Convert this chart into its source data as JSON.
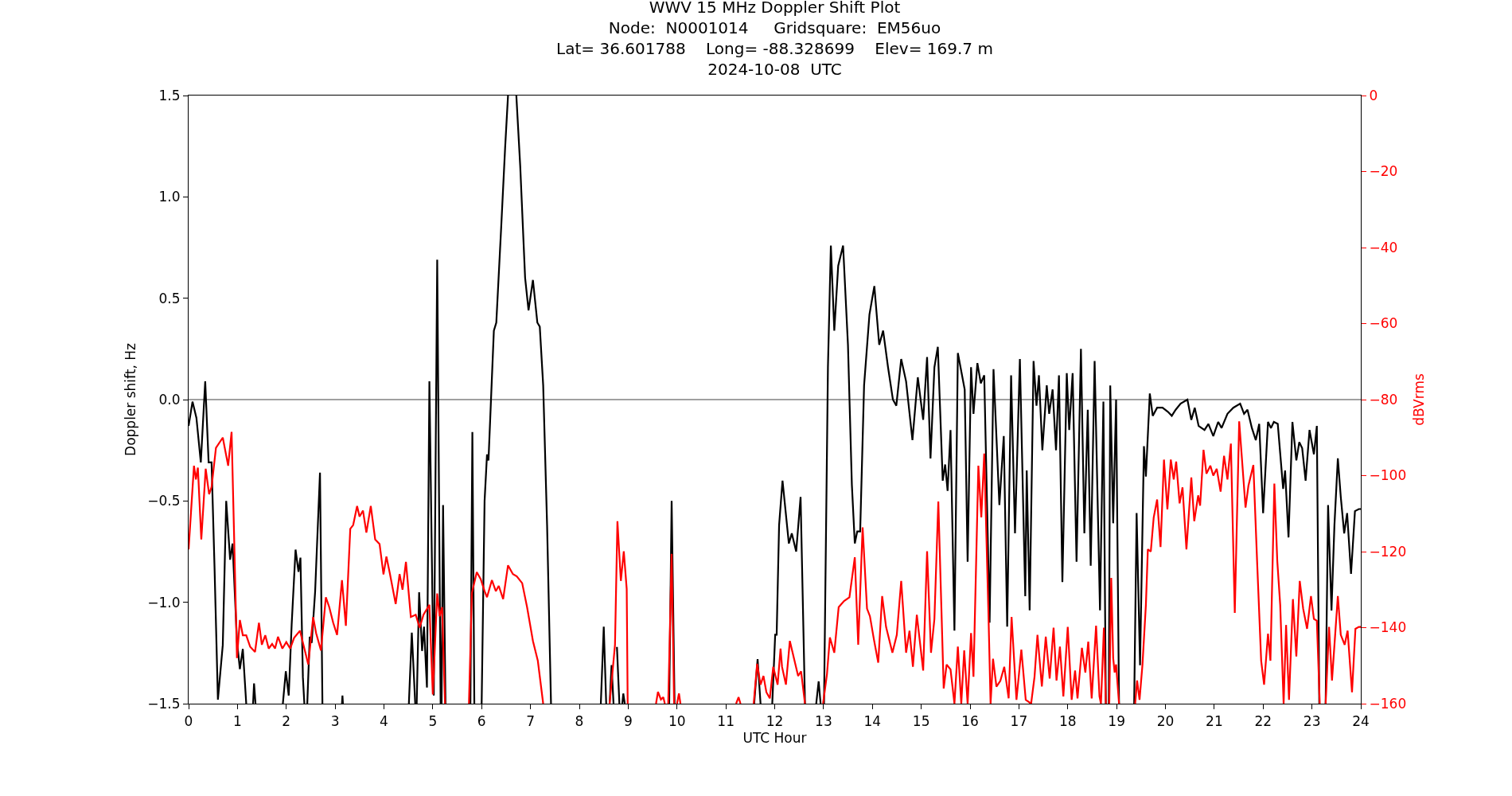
{
  "chart_data": {
    "type": "line",
    "title": "WWV 15 MHz Doppler Shift Plot\nNode:  N0001014     Gridsquare:  EM56uo\nLat= 36.601788    Long= -88.328699    Elev= 169.7 m\n2024-10-08  UTC",
    "xlabel": "UTC Hour",
    "ylabel": "Doppler shift, Hz",
    "y2label": "dBVrms",
    "xlim": [
      0,
      24
    ],
    "xticks": [
      0,
      1,
      2,
      3,
      4,
      5,
      6,
      7,
      8,
      9,
      10,
      11,
      12,
      13,
      14,
      15,
      16,
      17,
      18,
      19,
      20,
      21,
      22,
      23,
      24
    ],
    "ylim": [
      -1.5,
      1.5
    ],
    "yticks": [
      {
        "value": -1.5,
        "label": "−1.5"
      },
      {
        "value": -1.0,
        "label": "−1.0"
      },
      {
        "value": -0.5,
        "label": "−0.5"
      },
      {
        "value": 0,
        "label": "0.0"
      },
      {
        "value": 0.5,
        "label": "0.5"
      },
      {
        "value": 1.0,
        "label": "1.0"
      },
      {
        "value": 1.5,
        "label": "1.5"
      }
    ],
    "y2lim": [
      -160,
      0
    ],
    "y2ticks": [
      {
        "value": -160,
        "label": "−160"
      },
      {
        "value": -140,
        "label": "−140"
      },
      {
        "value": -120,
        "label": "−120"
      },
      {
        "value": -100,
        "label": "−100"
      },
      {
        "value": -80,
        "label": "−80"
      },
      {
        "value": -60,
        "label": "−60"
      },
      {
        "value": -40,
        "label": "−40"
      },
      {
        "value": -20,
        "label": "−20"
      },
      0
    ],
    "grid": false,
    "marker": "none",
    "line_style": "solid",
    "ref_lines": [
      {
        "axis": "y",
        "value": 0,
        "color": "#808080"
      }
    ],
    "series": [
      {
        "color": "#000000",
        "axis": "y",
        "x": [
          0,
          0.08,
          0.16,
          0.25,
          0.34,
          0.41,
          0.47,
          0.53,
          0.6,
          0.7,
          0.77,
          0.85,
          0.9,
          0.99,
          1.05,
          1.11,
          1.18,
          1.2,
          1.32,
          1.34,
          1.37,
          1.5,
          1.93,
          1.99,
          2.05,
          2.11,
          2.19,
          2.25,
          2.29,
          2.34,
          2.37,
          2.4,
          2.43,
          2.48,
          2.52,
          2.59,
          2.69,
          2.74,
          2.9,
          3.14,
          3.15,
          3.16,
          3.3,
          4.51,
          4.57,
          4.64,
          4.66,
          4.67,
          4.72,
          4.78,
          4.82,
          4.88,
          4.93,
          5.02,
          5.09,
          5.16,
          5.18,
          5.21,
          5.26,
          5.5,
          5.77,
          5.81,
          5.85,
          5.9,
          6.0,
          6.06,
          6.11,
          6.14,
          6.25,
          6.3,
          6.4,
          6.48,
          6.54,
          6.6,
          6.71,
          6.79,
          6.89,
          6.96,
          7.05,
          7.14,
          7.19,
          7.26,
          7.34,
          7.42,
          8.0,
          8.44,
          8.5,
          8.55,
          8.6,
          8.62,
          8.66,
          8.7,
          8.73,
          8.77,
          8.82,
          8.85,
          8.88,
          8.9,
          8.93,
          9.5,
          9.84,
          9.89,
          9.95,
          11.0,
          11.58,
          11.65,
          11.71,
          11.8,
          11.95,
          12.01,
          12.04,
          12.09,
          12.16,
          12.29,
          12.35,
          12.44,
          12.53,
          12.62,
          12.75,
          12.85,
          12.9,
          12.94,
          12.98,
          13.01,
          13.09,
          13.15,
          13.22,
          13.3,
          13.4,
          13.5,
          13.58,
          13.64,
          13.69,
          13.75,
          13.83,
          13.94,
          14.04,
          14.14,
          14.22,
          14.32,
          14.42,
          14.49,
          14.59,
          14.69,
          14.82,
          14.93,
          15.04,
          15.12,
          15.19,
          15.27,
          15.34,
          15.44,
          15.49,
          15.54,
          15.6,
          15.68,
          15.75,
          15.89,
          15.95,
          16.02,
          16.07,
          16.15,
          16.22,
          16.29,
          16.4,
          16.48,
          16.6,
          16.69,
          16.76,
          16.84,
          16.92,
          17.02,
          17.13,
          17.16,
          17.22,
          17.3,
          17.36,
          17.41,
          17.48,
          17.57,
          17.62,
          17.69,
          17.76,
          17.82,
          17.89,
          17.98,
          18.03,
          18.1,
          18.18,
          18.27,
          18.34,
          18.41,
          18.47,
          18.55,
          18.66,
          18.73,
          18.78,
          18.82,
          18.84,
          18.87,
          18.93,
          18.99,
          19.05,
          19.2,
          19.36,
          19.41,
          19.48,
          19.56,
          19.6,
          19.68,
          19.74,
          19.83,
          19.94,
          20.05,
          20.13,
          20.21,
          20.31,
          20.45,
          20.53,
          20.6,
          20.68,
          20.8,
          20.88,
          20.98,
          21.08,
          21.15,
          21.27,
          21.39,
          21.53,
          21.61,
          21.68,
          21.77,
          21.85,
          21.92,
          22.0,
          22.1,
          22.16,
          22.22,
          22.3,
          22.41,
          22.45,
          22.52,
          22.6,
          22.68,
          22.74,
          22.8,
          22.87,
          22.95,
          23.04,
          23.1,
          23.15,
          23.2,
          23.28,
          23.33,
          23.4,
          23.46,
          23.53,
          23.59,
          23.66,
          23.72,
          23.8,
          23.88,
          23.96,
          24
        ],
        "values": [
          -0.13,
          -0.01,
          -0.09,
          -0.31,
          0.09,
          -0.31,
          -0.31,
          -0.82,
          -1.48,
          -1.21,
          -0.5,
          -0.79,
          -0.71,
          -1.19,
          -1.33,
          -1.23,
          -1.5,
          null,
          -1.5,
          -1.4,
          -1.5,
          null,
          -1.5,
          -1.34,
          -1.46,
          -1.11,
          -0.74,
          -0.85,
          -0.78,
          -1.37,
          -1.5,
          null,
          -1.5,
          -1.17,
          -1.2,
          -0.95,
          -0.36,
          -1.5,
          null,
          -1.5,
          -1.46,
          -1.5,
          null,
          -1.5,
          -1.15,
          -1.5,
          null,
          -1.5,
          -0.95,
          -1.24,
          -1.12,
          -1.42,
          0.09,
          -1.46,
          0.69,
          -1.5,
          -1.5,
          -0.52,
          -1.5,
          null,
          -1.5,
          -0.16,
          -1.5,
          null,
          -1.5,
          -0.5,
          -0.27,
          -0.3,
          0.34,
          0.38,
          0.85,
          1.24,
          1.5,
          null,
          1.5,
          1.15,
          0.6,
          0.44,
          0.59,
          0.38,
          0.36,
          0.07,
          -0.62,
          -1.5,
          null,
          -1.5,
          -1.12,
          -1.5,
          null,
          -1.5,
          -1.31,
          -1.5,
          null,
          -1.22,
          -1.5,
          null,
          -1.5,
          -1.45,
          -1.5,
          null,
          -1.5,
          -0.5,
          -1.5,
          null,
          -1.5,
          -1.28,
          -1.5,
          null,
          -1.5,
          -1.16,
          -1.16,
          -0.62,
          -0.4,
          -0.71,
          -0.66,
          -0.75,
          -0.48,
          -1.5,
          null,
          -1.5,
          -1.39,
          -1.5,
          null,
          -1.5,
          0.16,
          0.76,
          0.34,
          0.66,
          0.76,
          0.27,
          -0.42,
          -0.71,
          -0.65,
          -0.65,
          0.07,
          0.42,
          0.56,
          0.27,
          0.34,
          0.16,
          0.0,
          -0.03,
          0.2,
          0.09,
          -0.2,
          0.11,
          -0.1,
          0.21,
          -0.29,
          0.16,
          0.26,
          -0.4,
          -0.32,
          -0.45,
          -0.15,
          -1.14,
          0.23,
          0.05,
          -0.8,
          0.16,
          -0.07,
          0.18,
          0.08,
          0.12,
          -1.1,
          0.15,
          -0.52,
          -0.18,
          -1.12,
          0.12,
          -0.66,
          0.2,
          -0.97,
          -0.35,
          -1.04,
          0.19,
          -0.03,
          0.12,
          -0.25,
          0.07,
          -0.07,
          0.05,
          -0.25,
          0.12,
          -0.9,
          0.13,
          -0.15,
          0.13,
          -0.8,
          0.25,
          -0.66,
          -0.05,
          -0.82,
          0.19,
          -1.04,
          -0.01,
          -1.5,
          null,
          -1.5,
          0.07,
          -0.61,
          0.0,
          -1.5,
          null,
          -1.5,
          -0.56,
          -1.31,
          -0.23,
          -0.38,
          0.03,
          -0.08,
          -0.04,
          -0.04,
          -0.06,
          -0.08,
          -0.05,
          -0.02,
          0.0,
          -0.1,
          -0.04,
          -0.13,
          -0.15,
          -0.12,
          -0.18,
          -0.11,
          -0.14,
          -0.07,
          -0.04,
          -0.02,
          -0.07,
          -0.05,
          -0.14,
          -0.2,
          -0.12,
          -0.56,
          -0.11,
          -0.14,
          -0.11,
          -0.12,
          -0.44,
          -0.35,
          -0.68,
          -0.11,
          -0.3,
          -0.21,
          -0.24,
          -0.4,
          -0.15,
          -0.27,
          -0.13,
          -1.5,
          null,
          -1.5,
          -0.52,
          -1.04,
          -0.62,
          -0.29,
          -0.48,
          -0.66,
          -0.56,
          -0.86,
          -0.55,
          -0.54,
          -0.54
        ]
      },
      {
        "color": "#ff0000",
        "axis": "y2",
        "x": [
          0,
          0.11,
          0.15,
          0.19,
          0.26,
          0.35,
          0.42,
          0.47,
          0.56,
          0.7,
          0.81,
          0.88,
          0.93,
          0.99,
          1.05,
          1.11,
          1.18,
          1.26,
          1.36,
          1.44,
          1.5,
          1.57,
          1.64,
          1.71,
          1.77,
          1.83,
          1.92,
          2.0,
          2.08,
          2.16,
          2.28,
          2.37,
          2.45,
          2.55,
          2.61,
          2.71,
          2.81,
          2.88,
          2.96,
          3.04,
          3.14,
          3.22,
          3.31,
          3.37,
          3.45,
          3.5,
          3.57,
          3.64,
          3.73,
          3.82,
          3.91,
          3.99,
          4.05,
          4.12,
          4.24,
          4.32,
          4.38,
          4.45,
          4.55,
          4.65,
          4.73,
          4.81,
          4.93,
          5.0,
          5.09,
          5.14,
          5.19,
          5.25,
          5.5,
          5.74,
          5.8,
          5.9,
          5.98,
          6.06,
          6.11,
          6.21,
          6.29,
          6.35,
          6.44,
          6.54,
          6.64,
          6.72,
          6.83,
          6.93,
          7.05,
          7.15,
          7.26,
          8.0,
          8.62,
          8.73,
          8.78,
          8.85,
          8.91,
          8.97,
          8.99,
          9.3,
          9.57,
          9.61,
          9.67,
          9.72,
          9.75,
          9.78,
          9.82,
          9.89,
          9.94,
          9.97,
          10.0,
          10.04,
          10.07,
          10.6,
          11.21,
          11.26,
          11.3,
          11.45,
          11.57,
          11.64,
          11.71,
          11.77,
          11.83,
          11.9,
          11.97,
          12.06,
          12.12,
          12.15,
          12.23,
          12.31,
          12.48,
          12.54,
          12.62,
          12.8,
          12.99,
          13.07,
          13.13,
          13.22,
          13.31,
          13.42,
          13.53,
          13.64,
          13.71,
          13.8,
          13.89,
          13.95,
          14.03,
          14.12,
          14.2,
          14.28,
          14.41,
          14.5,
          14.59,
          14.69,
          14.76,
          14.83,
          14.91,
          15.04,
          15.12,
          15.2,
          15.27,
          15.35,
          15.46,
          15.52,
          15.6,
          15.68,
          15.75,
          15.82,
          15.88,
          15.95,
          16.02,
          16.07,
          16.17,
          16.23,
          16.29,
          16.38,
          16.42,
          16.47,
          16.54,
          16.62,
          16.7,
          16.79,
          16.85,
          16.95,
          17.05,
          17.14,
          17.25,
          17.32,
          17.38,
          17.47,
          17.55,
          17.63,
          17.71,
          17.77,
          17.84,
          17.91,
          18.0,
          18.08,
          18.15,
          18.2,
          18.29,
          18.36,
          18.42,
          18.49,
          18.58,
          18.65,
          18.68,
          18.74,
          18.78,
          18.82,
          18.85,
          18.89,
          18.93,
          18.96,
          18.99,
          19.05,
          19.2,
          19.38,
          19.42,
          19.47,
          19.53,
          19.6,
          19.64,
          19.7,
          19.76,
          19.83,
          19.9,
          19.97,
          20.04,
          20.11,
          20.17,
          20.22,
          20.29,
          20.35,
          20.43,
          20.53,
          20.59,
          20.67,
          20.71,
          20.78,
          20.84,
          20.92,
          20.98,
          21.05,
          21.13,
          21.2,
          21.27,
          21.34,
          21.42,
          21.51,
          21.64,
          21.7,
          21.8,
          21.88,
          21.96,
          22.02,
          22.1,
          22.15,
          22.23,
          22.29,
          22.35,
          22.42,
          22.47,
          22.53,
          22.61,
          22.68,
          22.75,
          22.82,
          22.9,
          22.98,
          23.04,
          23.1,
          23.16,
          23.22,
          23.28,
          23.35,
          23.41,
          23.53,
          23.59,
          23.67,
          23.73,
          23.82,
          23.89,
          23.96,
          24
        ],
        "values": [
          -119.4,
          -97.4,
          -101,
          -97.9,
          -116.8,
          -98.2,
          -104.9,
          -103,
          -92.7,
          -90,
          -97.4,
          -88.5,
          -115,
          -148,
          -138,
          -142,
          -142,
          -145,
          -146.4,
          -138.7,
          -144.5,
          -142,
          -145.5,
          -144.3,
          -145.5,
          -142.4,
          -145.5,
          -143.8,
          -145.5,
          -142.7,
          -140.8,
          -145.5,
          -149.7,
          -137.2,
          -141.4,
          -146,
          -132,
          -134.6,
          -138.7,
          -141.9,
          -127.5,
          -139.5,
          -114,
          -113,
          -108,
          -110.8,
          -109.2,
          -115,
          -108,
          -116.8,
          -118,
          -126,
          -121.3,
          -125.7,
          -133.8,
          -125.9,
          -130,
          -122.7,
          -137.2,
          -136.6,
          -140,
          -136.6,
          -134,
          -157.6,
          -131,
          -137,
          -134.6,
          -160,
          null,
          -160,
          -130.9,
          -125.4,
          -127.2,
          -130.4,
          -132,
          -127.5,
          -130.4,
          -129,
          -132.5,
          -123.6,
          -125.9,
          -126.5,
          -128.3,
          -134.6,
          -143.5,
          -148.7,
          -160,
          null,
          -160,
          -144.5,
          -112,
          -127.7,
          -119.9,
          -129.8,
          -160,
          null,
          -160,
          -156.9,
          -158.9,
          -158.3,
          -160,
          null,
          -160,
          -120.6,
          -160,
          null,
          -160,
          -157.3,
          -160,
          null,
          -160,
          -158.3,
          -160,
          null,
          -160,
          -149.5,
          -155,
          -152.7,
          -157,
          -158.6,
          -150.3,
          -155,
          -145.5,
          -150.3,
          -155,
          -143.5,
          -152.7,
          -151.5,
          -160,
          null,
          -160,
          -152.3,
          -142.6,
          -146.6,
          -134.6,
          -133,
          -132,
          -121.5,
          -144.5,
          -113.6,
          -135,
          -137,
          -143,
          -149.2,
          -131.7,
          -139.8,
          -146.6,
          -141.9,
          -127.7,
          -146.6,
          -140.8,
          -150.3,
          -136.6,
          -151.3,
          -119.9,
          -146.6,
          -137.7,
          -106.8,
          -156,
          -149.7,
          -151,
          -160,
          -145,
          -160,
          -146,
          -160,
          -141.4,
          -152.9,
          -97.4,
          -111,
          -94.2,
          -138.2,
          -160,
          -148.2,
          -155.5,
          -154,
          -150.3,
          -158.6,
          -137.2,
          -159,
          -145.8,
          -159,
          -160,
          -152.9,
          -141.9,
          -155.5,
          -142.4,
          -153.4,
          -140,
          -153.9,
          -145,
          -158.1,
          -139.8,
          -159,
          -151.3,
          -158.6,
          -145.3,
          -151.8,
          -143.7,
          -158.6,
          -139.5,
          -158.1,
          -160,
          -140,
          -160,
          null,
          -160,
          -126.9,
          -148,
          -151.8,
          -149.7,
          -160,
          null,
          -160,
          -153.9,
          -159,
          -149.7,
          -134,
          -119.4,
          -120,
          -111,
          -106.3,
          -118.8,
          -95.8,
          -108.9,
          -95.8,
          -101,
          -96.3,
          -107.3,
          -103.1,
          -119.4,
          -100.5,
          -112,
          -105.2,
          -107.9,
          -93.2,
          -99.5,
          -97.4,
          -100,
          -98.2,
          -104.2,
          -94.8,
          -101,
          -91.6,
          -136.1,
          -85.7,
          -108.4,
          -102.6,
          -97.2,
          -123.6,
          -148.7,
          -155,
          -141.6,
          -148.7,
          -102.1,
          -122.5,
          -134,
          -160,
          -139.3,
          -159,
          -132.5,
          -147.6,
          -127.7,
          -135,
          -140.3,
          -131.7,
          -137.7,
          -138.2,
          -160,
          null,
          -160,
          -139.8,
          -153.9,
          -131.7,
          -141.9,
          -144.5,
          -140.8,
          -157,
          -140.3,
          -139.8,
          -139.8
        ]
      }
    ]
  }
}
